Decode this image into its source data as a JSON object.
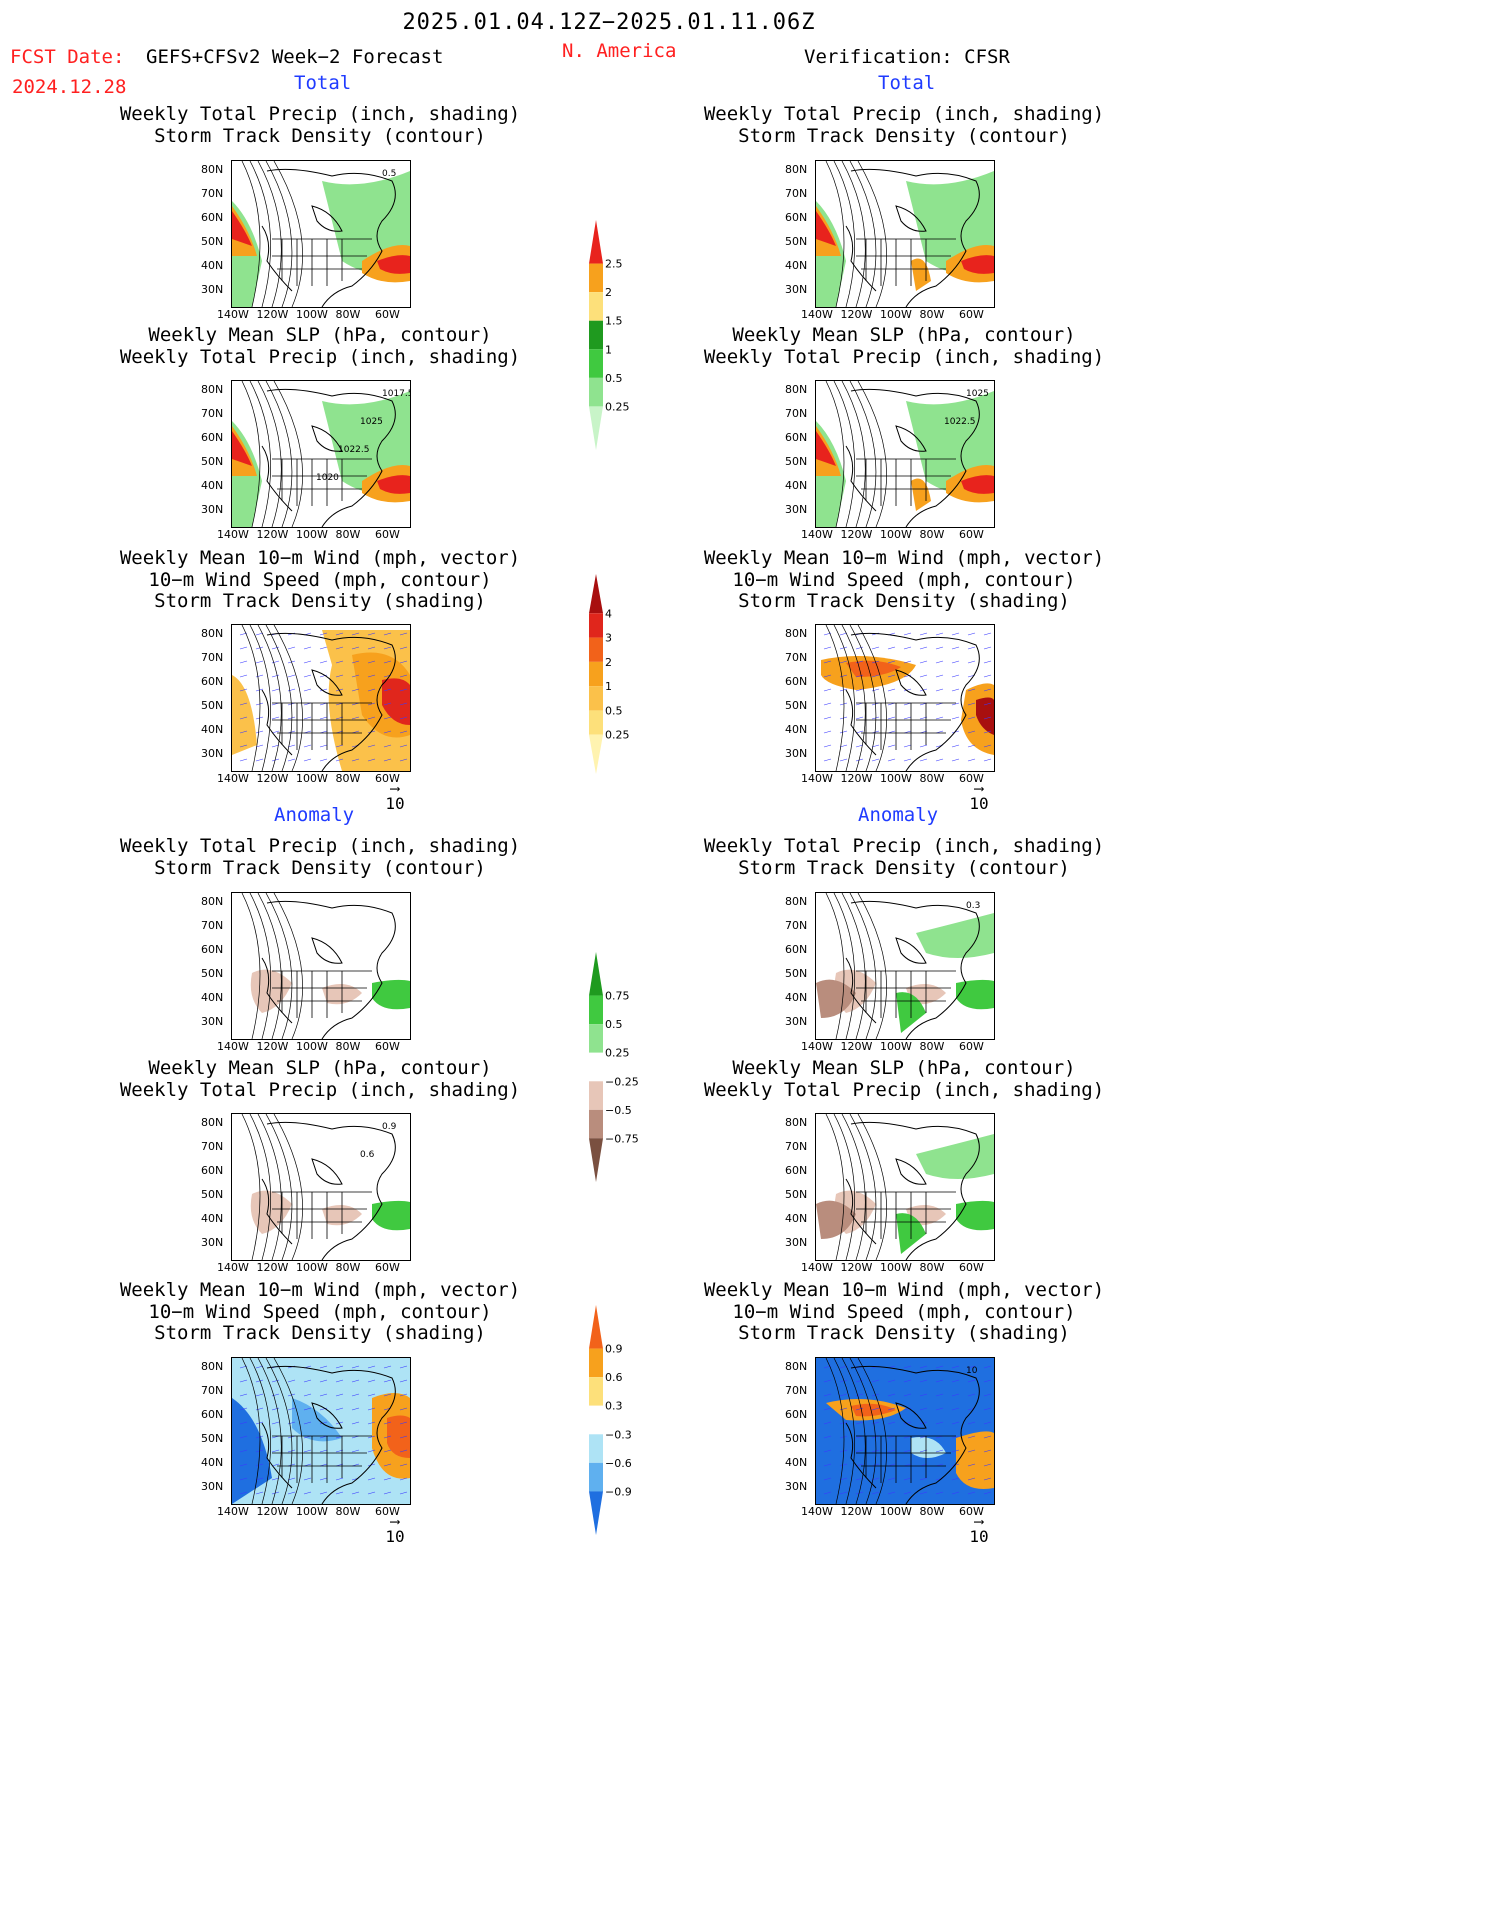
{
  "header": {
    "date_range": "2025.01.04.12Z−2025.01.11.06Z",
    "fcst_label": "FCST Date:",
    "fcst_model": "GEFS+CFSv2 Week−2 Forecast",
    "fcst_date": "2024.12.28",
    "region": "N. America",
    "verification": "Verification: CFSR"
  },
  "sections": {
    "total": "Total",
    "anomaly": "Anomaly"
  },
  "panel_titles": {
    "precip_track": [
      "Weekly Total Precip (inch, shading)",
      "Storm Track Density (contour)"
    ],
    "slp_precip": [
      "Weekly Mean SLP (hPa, contour)",
      "Weekly Total Precip (inch, shading)"
    ],
    "wind_track": [
      "Weekly Mean 10−m Wind (mph, vector)",
      "10−m Wind Speed (mph, contour)",
      "Storm Track Density (shading)"
    ]
  },
  "axes": {
    "lat_ticks": [
      "80N",
      "70N",
      "60N",
      "50N",
      "40N",
      "30N"
    ],
    "lon_ticks": [
      "140W",
      "120W",
      "100W",
      "80W",
      "60W"
    ]
  },
  "vector_ref": "10",
  "colorbars": {
    "precip_total": {
      "labels": [
        "2.5",
        "2",
        "1.5",
        "1",
        "0.5",
        "0.25"
      ],
      "colors": [
        "#e8231d",
        "#f7a11d",
        "#fde07a",
        "#1f9a1f",
        "#40c940",
        "#8fe38f",
        "#c8f4c8"
      ]
    },
    "track_total": {
      "labels": [
        "4",
        "3",
        "2",
        "1",
        "0.5",
        "0.25"
      ],
      "colors": [
        "#a80f0f",
        "#e0261c",
        "#f2621a",
        "#f7a11d",
        "#fbc14a",
        "#fde07a",
        "#fff3b0"
      ]
    },
    "precip_anom": {
      "labels": [
        "0.75",
        "0.5",
        "0.25",
        "−0.25",
        "−0.5",
        "−0.75"
      ],
      "colors": [
        "#1f9a1f",
        "#40c940",
        "#8fe38f",
        "#ffffff",
        "#e7c6b8",
        "#b98d7d",
        "#7a5040"
      ]
    },
    "track_anom": {
      "labels": [
        "0.9",
        "0.6",
        "0.3",
        "−0.3",
        "−0.6",
        "−0.9"
      ],
      "colors": [
        "#f2621a",
        "#f7a11d",
        "#fde07a",
        "#ffffff",
        "#aee3f5",
        "#5fb0ef",
        "#1f6fe0"
      ]
    }
  },
  "map_labels": {
    "m1": [
      "0.5"
    ],
    "m3": [
      "1017.5",
      "1025",
      "1022.5",
      "1020"
    ],
    "m4": [
      "1025",
      "1022.5"
    ],
    "m8": [
      "0.3"
    ],
    "m9": [
      "0.9",
      "0.6"
    ],
    "m12": [
      "10"
    ]
  }
}
